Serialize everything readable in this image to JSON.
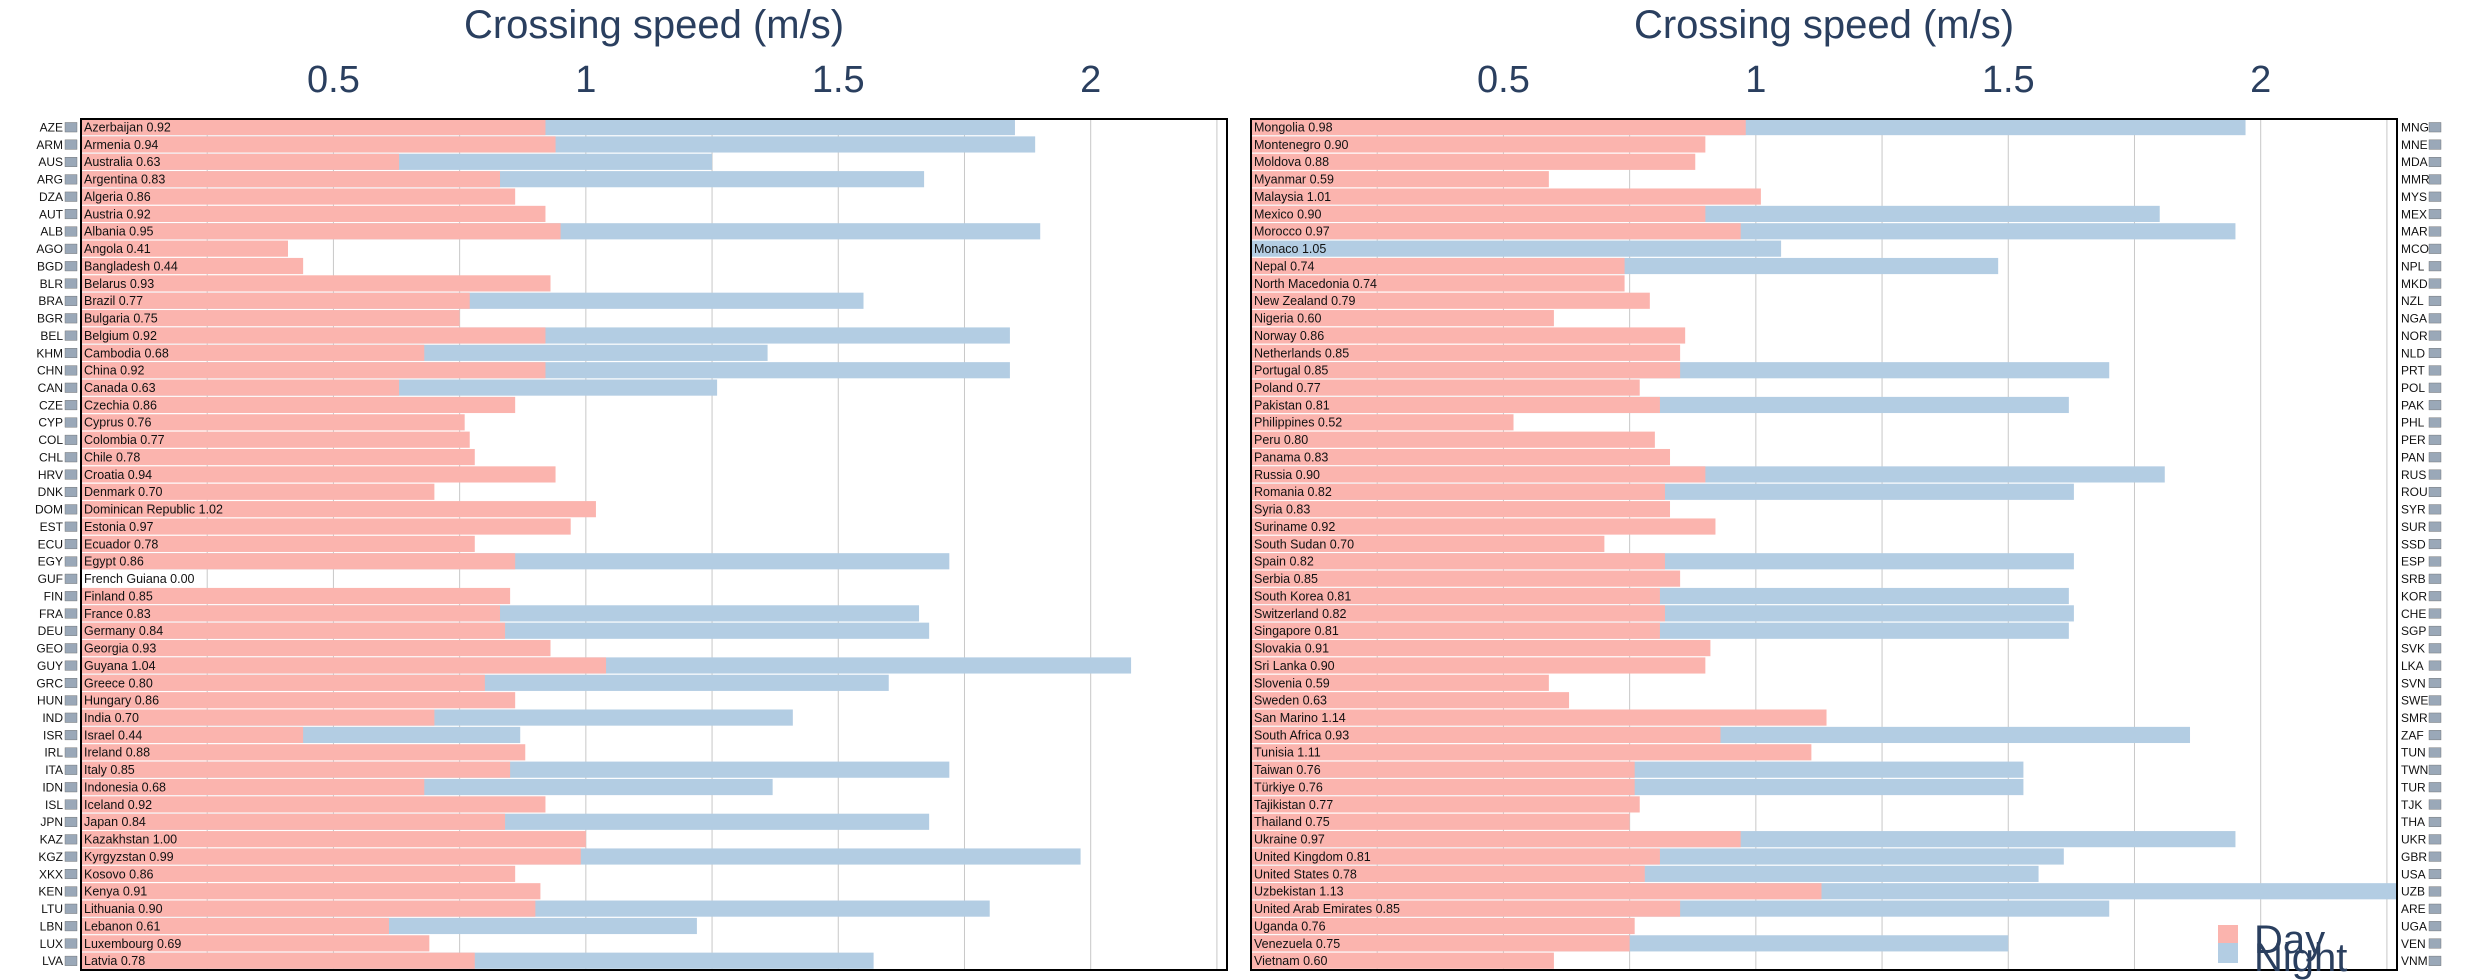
{
  "chart_data": [
    {
      "type": "bar",
      "orientation": "horizontal",
      "title": "Crossing speed (m/s)",
      "xlabel": "Crossing speed (m/s)",
      "x_ticks": [
        0.5,
        1,
        1.5,
        2
      ],
      "xlim": [
        0.0,
        2.27
      ],
      "code_side": "left",
      "grid": true,
      "series": [
        {
          "name": "Day",
          "color": "#fbb4ae"
        },
        {
          "name": "Night",
          "color": "#b3cde3"
        }
      ],
      "rows": [
        {
          "code": "AZE",
          "label": "Azerbaijan 0.92",
          "day": 0.92,
          "night": 1.85
        },
        {
          "code": "ARM",
          "label": "Armenia 0.94",
          "day": 0.94,
          "night": 1.89
        },
        {
          "code": "AUS",
          "label": "Australia 0.63",
          "day": 0.63,
          "night": 1.25
        },
        {
          "code": "ARG",
          "label": "Argentina 0.83",
          "day": 0.83,
          "night": 1.67
        },
        {
          "code": "DZA",
          "label": "Algeria 0.86",
          "day": 0.86,
          "night": null
        },
        {
          "code": "AUT",
          "label": "Austria 0.92",
          "day": 0.92,
          "night": null
        },
        {
          "code": "ALB",
          "label": "Albania 0.95",
          "day": 0.95,
          "night": 1.9
        },
        {
          "code": "AGO",
          "label": "Angola 0.41",
          "day": 0.41,
          "night": null
        },
        {
          "code": "BGD",
          "label": "Bangladesh 0.44",
          "day": 0.44,
          "night": null
        },
        {
          "code": "BLR",
          "label": "Belarus 0.93",
          "day": 0.93,
          "night": null
        },
        {
          "code": "BRA",
          "label": "Brazil 0.77",
          "day": 0.77,
          "night": 1.55
        },
        {
          "code": "BGR",
          "label": "Bulgaria 0.75",
          "day": 0.75,
          "night": null
        },
        {
          "code": "BEL",
          "label": "Belgium 0.92",
          "day": 0.92,
          "night": 1.84
        },
        {
          "code": "KHM",
          "label": "Cambodia 0.68",
          "day": 0.68,
          "night": 1.36
        },
        {
          "code": "CHN",
          "label": "China 0.92",
          "day": 0.92,
          "night": 1.84
        },
        {
          "code": "CAN",
          "label": "Canada 0.63",
          "day": 0.63,
          "night": 1.26
        },
        {
          "code": "CZE",
          "label": "Czechia 0.86",
          "day": 0.86,
          "night": null
        },
        {
          "code": "CYP",
          "label": "Cyprus 0.76",
          "day": 0.76,
          "night": null
        },
        {
          "code": "COL",
          "label": "Colombia 0.77",
          "day": 0.77,
          "night": null
        },
        {
          "code": "CHL",
          "label": "Chile 0.78",
          "day": 0.78,
          "night": null
        },
        {
          "code": "HRV",
          "label": "Croatia 0.94",
          "day": 0.94,
          "night": null
        },
        {
          "code": "DNK",
          "label": "Denmark 0.70",
          "day": 0.7,
          "night": null
        },
        {
          "code": "DOM",
          "label": "Dominican Republic 1.02",
          "day": 1.02,
          "night": null
        },
        {
          "code": "EST",
          "label": "Estonia 0.97",
          "day": 0.97,
          "night": null
        },
        {
          "code": "ECU",
          "label": "Ecuador 0.78",
          "day": 0.78,
          "night": null
        },
        {
          "code": "EGY",
          "label": "Egypt 0.86",
          "day": 0.86,
          "night": 1.72
        },
        {
          "code": "GUF",
          "label": "French Guiana 0.00",
          "day": 0.0,
          "night": null
        },
        {
          "code": "FIN",
          "label": "Finland 0.85",
          "day": 0.85,
          "night": null
        },
        {
          "code": "FRA",
          "label": "France 0.83",
          "day": 0.83,
          "night": 1.66
        },
        {
          "code": "DEU",
          "label": "Germany 0.84",
          "day": 0.84,
          "night": 1.68
        },
        {
          "code": "GEO",
          "label": "Georgia 0.93",
          "day": 0.93,
          "night": null
        },
        {
          "code": "GUY",
          "label": "Guyana 1.04",
          "day": 1.04,
          "night": 2.08
        },
        {
          "code": "GRC",
          "label": "Greece 0.80",
          "day": 0.8,
          "night": 1.6
        },
        {
          "code": "HUN",
          "label": "Hungary 0.86",
          "day": 0.86,
          "night": null
        },
        {
          "code": "IND",
          "label": "India 0.70",
          "day": 0.7,
          "night": 1.41
        },
        {
          "code": "ISR",
          "label": "Israel 0.44",
          "day": 0.44,
          "night": 0.87
        },
        {
          "code": "IRL",
          "label": "Ireland 0.88",
          "day": 0.88,
          "night": null
        },
        {
          "code": "ITA",
          "label": "Italy 0.85",
          "day": 0.85,
          "night": 1.72
        },
        {
          "code": "IDN",
          "label": "Indonesia 0.68",
          "day": 0.68,
          "night": 1.37
        },
        {
          "code": "ISL",
          "label": "Iceland 0.92",
          "day": 0.92,
          "night": null
        },
        {
          "code": "JPN",
          "label": "Japan 0.84",
          "day": 0.84,
          "night": 1.68
        },
        {
          "code": "KAZ",
          "label": "Kazakhstan 1.00",
          "day": 1.0,
          "night": null
        },
        {
          "code": "KGZ",
          "label": "Kyrgyzstan 0.99",
          "day": 0.99,
          "night": 1.98
        },
        {
          "code": "XKX",
          "label": "Kosovo 0.86",
          "day": 0.86,
          "night": null
        },
        {
          "code": "KEN",
          "label": "Kenya 0.91",
          "day": 0.91,
          "night": null
        },
        {
          "code": "LTU",
          "label": "Lithuania 0.90",
          "day": 0.9,
          "night": 1.8
        },
        {
          "code": "LBN",
          "label": "Lebanon 0.61",
          "day": 0.61,
          "night": 1.22
        },
        {
          "code": "LUX",
          "label": "Luxembourg 0.69",
          "day": 0.69,
          "night": null
        },
        {
          "code": "LVA",
          "label": "Latvia 0.78",
          "day": 0.78,
          "night": 1.57
        }
      ]
    },
    {
      "type": "bar",
      "orientation": "horizontal",
      "title": "Crossing speed (m/s)",
      "xlabel": "Crossing speed (m/s)",
      "x_ticks": [
        0.5,
        1,
        1.5,
        2
      ],
      "xlim": [
        0.0,
        2.27
      ],
      "code_side": "right",
      "grid": true,
      "legend": {
        "position": "bottom-right",
        "entries": [
          "Day",
          "Night"
        ]
      },
      "series": [
        {
          "name": "Day",
          "color": "#fbb4ae"
        },
        {
          "name": "Night",
          "color": "#b3cde3"
        }
      ],
      "rows": [
        {
          "code": "MNG",
          "label": "Mongolia 0.98",
          "day": 0.98,
          "night": 1.97
        },
        {
          "code": "MNE",
          "label": "Montenegro 0.90",
          "day": 0.9,
          "night": null
        },
        {
          "code": "MDA",
          "label": "Moldova 0.88",
          "day": 0.88,
          "night": null
        },
        {
          "code": "MMR",
          "label": "Myanmar 0.59",
          "day": 0.59,
          "night": null
        },
        {
          "code": "MYS",
          "label": "Malaysia 1.01",
          "day": 1.01,
          "night": null
        },
        {
          "code": "MEX",
          "label": "Mexico 0.90",
          "day": 0.9,
          "night": 1.8
        },
        {
          "code": "MAR",
          "label": "Morocco 0.97",
          "day": 0.97,
          "night": 1.95
        },
        {
          "code": "MCO",
          "label": "Monaco 1.05",
          "day": null,
          "night": 1.05
        },
        {
          "code": "NPL",
          "label": "Nepal 0.74",
          "day": 0.74,
          "night": 1.48
        },
        {
          "code": "MKD",
          "label": "North Macedonia 0.74",
          "day": 0.74,
          "night": null
        },
        {
          "code": "NZL",
          "label": "New Zealand 0.79",
          "day": 0.79,
          "night": null
        },
        {
          "code": "NGA",
          "label": "Nigeria 0.60",
          "day": 0.6,
          "night": null
        },
        {
          "code": "NOR",
          "label": "Norway 0.86",
          "day": 0.86,
          "night": null
        },
        {
          "code": "NLD",
          "label": "Netherlands 0.85",
          "day": 0.85,
          "night": null
        },
        {
          "code": "PRT",
          "label": "Portugal 0.85",
          "day": 0.85,
          "night": 1.7
        },
        {
          "code": "POL",
          "label": "Poland 0.77",
          "day": 0.77,
          "night": null
        },
        {
          "code": "PAK",
          "label": "Pakistan 0.81",
          "day": 0.81,
          "night": 1.62
        },
        {
          "code": "PHL",
          "label": "Philippines 0.52",
          "day": 0.52,
          "night": null
        },
        {
          "code": "PER",
          "label": "Peru 0.80",
          "day": 0.8,
          "night": null
        },
        {
          "code": "PAN",
          "label": "Panama 0.83",
          "day": 0.83,
          "night": null
        },
        {
          "code": "RUS",
          "label": "Russia 0.90",
          "day": 0.9,
          "night": 1.81
        },
        {
          "code": "ROU",
          "label": "Romania 0.82",
          "day": 0.82,
          "night": 1.63
        },
        {
          "code": "SYR",
          "label": "Syria 0.83",
          "day": 0.83,
          "night": null
        },
        {
          "code": "SUR",
          "label": "Suriname 0.92",
          "day": 0.92,
          "night": null
        },
        {
          "code": "SSD",
          "label": "South Sudan 0.70",
          "day": 0.7,
          "night": null
        },
        {
          "code": "ESP",
          "label": "Spain 0.82",
          "day": 0.82,
          "night": 1.63
        },
        {
          "code": "SRB",
          "label": "Serbia 0.85",
          "day": 0.85,
          "night": null
        },
        {
          "code": "KOR",
          "label": "South Korea 0.81",
          "day": 0.81,
          "night": 1.62
        },
        {
          "code": "CHE",
          "label": "Switzerland 0.82",
          "day": 0.82,
          "night": 1.63
        },
        {
          "code": "SGP",
          "label": "Singapore 0.81",
          "day": 0.81,
          "night": 1.62
        },
        {
          "code": "SVK",
          "label": "Slovakia 0.91",
          "day": 0.91,
          "night": null
        },
        {
          "code": "LKA",
          "label": "Sri Lanka 0.90",
          "day": 0.9,
          "night": null
        },
        {
          "code": "SVN",
          "label": "Slovenia 0.59",
          "day": 0.59,
          "night": null
        },
        {
          "code": "SWE",
          "label": "Sweden 0.63",
          "day": 0.63,
          "night": null
        },
        {
          "code": "SMR",
          "label": "San Marino 1.14",
          "day": 1.14,
          "night": null
        },
        {
          "code": "ZAF",
          "label": "South Africa 0.93",
          "day": 0.93,
          "night": 1.86
        },
        {
          "code": "TUN",
          "label": "Tunisia 1.11",
          "day": 1.11,
          "night": null
        },
        {
          "code": "TWN",
          "label": "Taiwan 0.76",
          "day": 0.76,
          "night": 1.53
        },
        {
          "code": "TUR",
          "label": "Türkiye 0.76",
          "day": 0.76,
          "night": 1.53
        },
        {
          "code": "TJK",
          "label": "Tajikistan 0.77",
          "day": 0.77,
          "night": null
        },
        {
          "code": "THA",
          "label": "Thailand 0.75",
          "day": 0.75,
          "night": null
        },
        {
          "code": "UKR",
          "label": "Ukraine 0.97",
          "day": 0.97,
          "night": 1.95
        },
        {
          "code": "GBR",
          "label": "United Kingdom 0.81",
          "day": 0.81,
          "night": 1.61
        },
        {
          "code": "USA",
          "label": "United States 0.78",
          "day": 0.78,
          "night": 1.56
        },
        {
          "code": "UZB",
          "label": "Uzbekistan 1.13",
          "day": 1.13,
          "night": 2.27
        },
        {
          "code": "ARE",
          "label": "United Arab Emirates 0.85",
          "day": 0.85,
          "night": 1.7
        },
        {
          "code": "UGA",
          "label": "Uganda 0.76",
          "day": 0.76,
          "night": null
        },
        {
          "code": "VEN",
          "label": "Venezuela 0.75",
          "day": 0.75,
          "night": 1.5
        },
        {
          "code": "VNM",
          "label": "Vietnam 0.60",
          "day": 0.6,
          "night": null
        }
      ]
    }
  ]
}
